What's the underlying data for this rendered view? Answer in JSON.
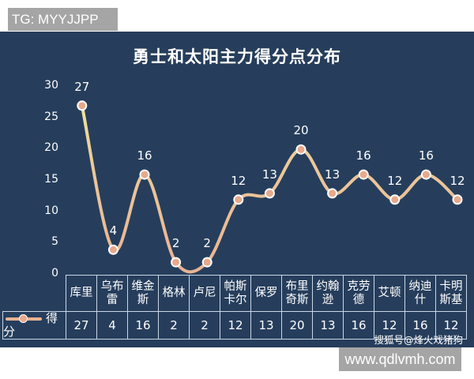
{
  "overlay": {
    "top_left": "TG: MYYJJPP",
    "bottom_right": "www.qdlvmh.com"
  },
  "credit": "搜狐号@烽火戏猪狗",
  "colors": {
    "background": "#263e5c",
    "line": "#e9b393",
    "line_top": "#efe29a",
    "marker": "#e8a98b",
    "text": "#ffffff",
    "grid": "#c9d6e6"
  },
  "chart_data": {
    "type": "line",
    "title": "勇士和太阳主力得分点分布",
    "xlabel": "",
    "ylabel": "",
    "ylim": [
      0,
      30
    ],
    "yticks": [
      "30",
      "25",
      "20",
      "15",
      "10",
      "5",
      "0"
    ],
    "grid": false,
    "legend_position": "table-left",
    "categories": [
      "库里",
      "乌布雷",
      "维金斯",
      "格林",
      "卢尼",
      "帕斯卡尔",
      "保罗",
      "布里奇斯",
      "约翰逊",
      "克劳德",
      "艾顿",
      "纳迪什",
      "卡明斯基"
    ],
    "category_display": [
      [
        "库里"
      ],
      [
        "乌布",
        "雷"
      ],
      [
        "维金",
        "斯"
      ],
      [
        "格林"
      ],
      [
        "卢尼"
      ],
      [
        "帕斯",
        "卡尔"
      ],
      [
        "保罗"
      ],
      [
        "布里",
        "奇斯"
      ],
      [
        "约翰",
        "逊"
      ],
      [
        "克劳",
        "德"
      ],
      [
        "艾顿"
      ],
      [
        "纳迪",
        "什"
      ],
      [
        "卡明",
        "斯基"
      ]
    ],
    "series": [
      {
        "name": "得分",
        "values": [
          27,
          4,
          16,
          2,
          2,
          12,
          13,
          20,
          13,
          16,
          12,
          16,
          12
        ]
      }
    ],
    "data_labels": [
      "27",
      "4",
      "16",
      "2",
      "2",
      "12",
      "13",
      "20",
      "13",
      "16",
      "12",
      "16",
      "12"
    ]
  },
  "table": {
    "legend_label": "得分",
    "values": [
      "27",
      "4",
      "16",
      "2",
      "2",
      "12",
      "13",
      "20",
      "13",
      "16",
      "12",
      "16",
      "12"
    ]
  }
}
